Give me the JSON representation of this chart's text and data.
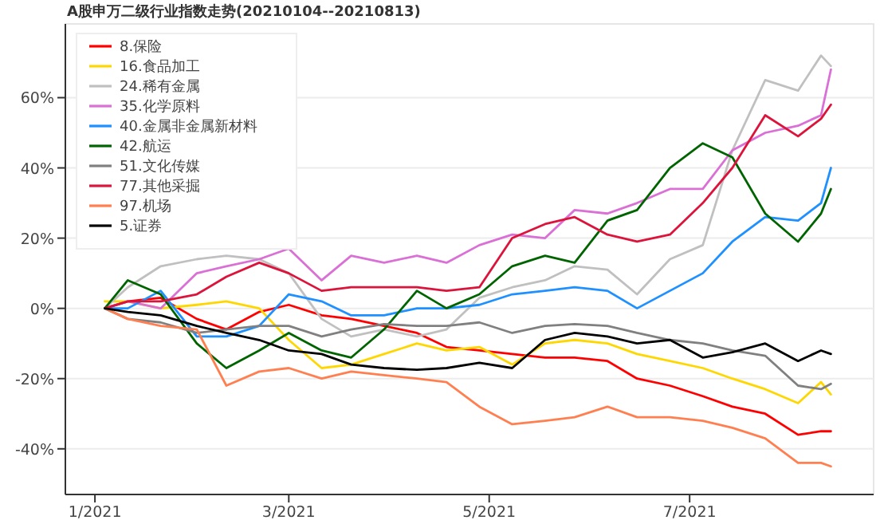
{
  "chart_data": {
    "type": "line",
    "title": "A股申万二级行业指数走势(20210104--20210813)",
    "x": [
      "2021-01-04",
      "2021-01-11",
      "2021-01-21",
      "2021-02-01",
      "2021-02-10",
      "2021-02-20",
      "2021-03-01",
      "2021-03-11",
      "2021-03-20",
      "2021-03-30",
      "2021-04-09",
      "2021-04-18",
      "2021-04-28",
      "2021-05-08",
      "2021-05-18",
      "2021-05-27",
      "2021-06-06",
      "2021-06-15",
      "2021-06-25",
      "2021-07-05",
      "2021-07-14",
      "2021-07-24",
      "2021-08-03",
      "2021-08-10",
      "2021-08-13"
    ],
    "series": [
      {
        "name": "8.保险",
        "color": "#ff0000",
        "values": [
          0,
          2,
          3,
          -3,
          -6,
          -1,
          1,
          -2,
          -3,
          -5,
          -7,
          -11,
          -12,
          -13,
          -14,
          -14,
          -15,
          -20,
          -22,
          -25,
          -28,
          -30,
          -36,
          -35,
          -35
        ]
      },
      {
        "name": "16.食品加工",
        "color": "#ffd700",
        "values": [
          2,
          2,
          0,
          1,
          2,
          0,
          -9,
          -17,
          -16,
          -13,
          -10,
          -12,
          -11,
          -16,
          -10,
          -9,
          -10,
          -13,
          -15,
          -17,
          -20,
          -23,
          -27,
          -21,
          -24.5
        ]
      },
      {
        "name": "24.稀有金属",
        "color": "#c0c0c0",
        "values": [
          0,
          6,
          12,
          14,
          15,
          14,
          10,
          -3,
          -8,
          -6,
          -8,
          -6,
          3,
          6,
          8,
          12,
          11,
          4,
          14,
          18,
          45,
          65,
          62,
          72,
          69
        ]
      },
      {
        "name": "35.化学原料",
        "color": "#da70d6",
        "values": [
          0,
          2,
          0,
          10,
          12,
          14,
          17,
          8,
          15,
          13,
          15,
          13,
          18,
          21,
          20,
          28,
          27,
          30,
          34,
          34,
          45,
          50,
          52,
          55,
          68
        ]
      },
      {
        "name": "40.金属非金属新材料",
        "color": "#1e90ff",
        "values": [
          0,
          0,
          5,
          -8,
          -8,
          -5,
          4,
          2,
          -2,
          -2,
          0,
          0,
          1,
          4,
          5,
          6,
          5,
          0,
          5,
          10,
          19,
          26,
          25,
          30,
          40
        ]
      },
      {
        "name": "42.航运",
        "color": "#006400",
        "values": [
          0,
          8,
          4,
          -10,
          -17,
          -12,
          -7,
          -12,
          -14,
          -6,
          5,
          0,
          4,
          12,
          15,
          13,
          25,
          28,
          40,
          47,
          43,
          27,
          19,
          27,
          34
        ]
      },
      {
        "name": "51.文化传媒",
        "color": "#808080",
        "values": [
          0,
          -3,
          -4,
          -7,
          -6,
          -5,
          -5,
          -8,
          -6,
          -4.5,
          -5,
          -5,
          -4,
          -7,
          -5,
          -4.5,
          -5,
          -7,
          -9,
          -10,
          -12,
          -13.5,
          -22,
          -23,
          -21.5
        ]
      },
      {
        "name": "77.其他采掘",
        "color": "#dc143c",
        "values": [
          0,
          2,
          2,
          4,
          9,
          13,
          10,
          5,
          6,
          6,
          6,
          5,
          6,
          20,
          24,
          26,
          21,
          19,
          21,
          30,
          40,
          55,
          49,
          54,
          58
        ]
      },
      {
        "name": "97.机场",
        "color": "#ff7f50",
        "values": [
          0,
          -3,
          -5,
          -6,
          -22,
          -18,
          -17,
          -20,
          -18,
          -19,
          -20,
          -21,
          -28,
          -33,
          -32,
          -31,
          -28,
          -31,
          -31,
          -32,
          -34,
          -37,
          -44,
          -44,
          -45
        ]
      },
      {
        "name": "5.证券",
        "color": "#000000",
        "values": [
          0,
          -1,
          -2,
          -5,
          -7,
          -9,
          -12,
          -13,
          -16,
          -17,
          -17.5,
          -17,
          -15.5,
          -17,
          -9,
          -7,
          -8,
          -10,
          -9,
          -14,
          -12.5,
          -10,
          -15,
          -12,
          -13
        ]
      }
    ],
    "xlim": [
      "2020-12-23",
      "2021-08-26"
    ],
    "xticks": [
      {
        "value": "2021-01-01",
        "label": "1/2021"
      },
      {
        "value": "2021-03-01",
        "label": "3/2021"
      },
      {
        "value": "2021-05-01",
        "label": "5/2021"
      },
      {
        "value": "2021-07-01",
        "label": "7/2021"
      }
    ],
    "ylim": [
      -53,
      81
    ],
    "yticks": [
      {
        "value": -40,
        "label": "-40%"
      },
      {
        "value": -20,
        "label": "-20%"
      },
      {
        "value": 0,
        "label": "0%"
      },
      {
        "value": 20,
        "label": "20%"
      },
      {
        "value": 40,
        "label": "40%"
      },
      {
        "value": 60,
        "label": "60%"
      }
    ],
    "grid": "y",
    "legend": "top left",
    "marker": "none",
    "line_style": "solid"
  }
}
